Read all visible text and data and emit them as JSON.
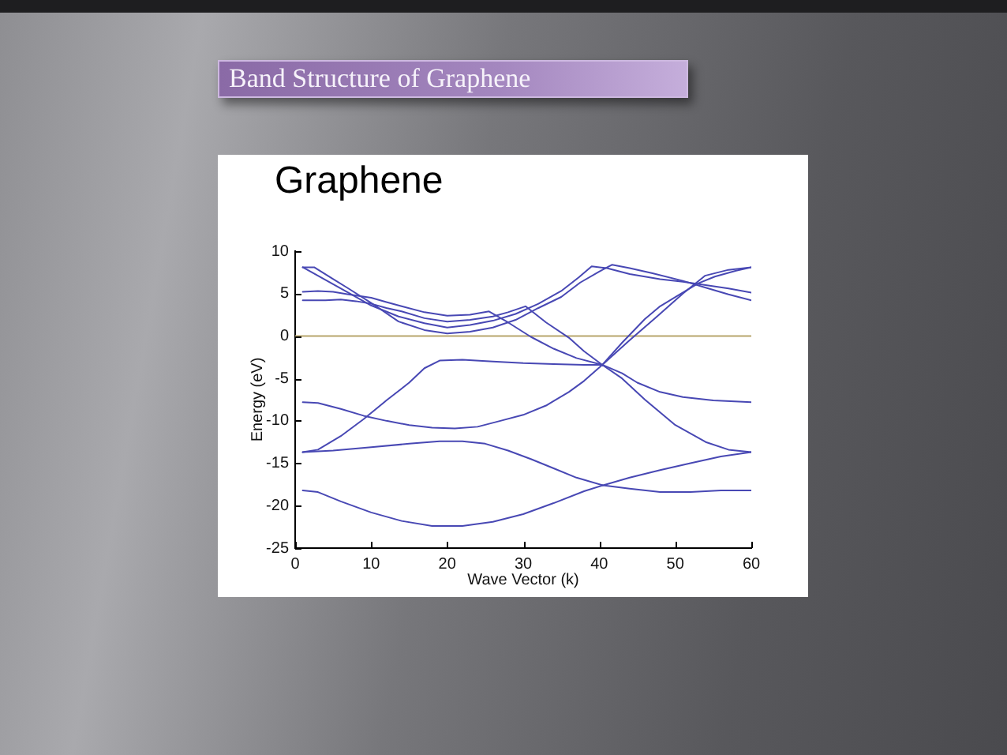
{
  "chart_data": {
    "type": "line",
    "title": "Band Structure of Graphene",
    "subtitle": "Graphene",
    "xlabel": "Wave Vector (k)",
    "ylabel": "Energy (eV)",
    "xlim": [
      0,
      60
    ],
    "xticks": [
      0,
      10,
      20,
      30,
      40,
      50,
      60
    ],
    "ylim": [
      -25,
      10
    ],
    "yticks": [
      -25,
      -20,
      -15,
      -10,
      -5,
      0,
      5,
      10
    ],
    "legend": false,
    "ref_lines": [
      {
        "axis": "y",
        "value": 0,
        "color": "#b8a66c"
      }
    ],
    "series": [
      {
        "color": "#4848b4",
        "x": [
          1,
          3,
          5,
          7,
          10,
          12,
          14,
          17,
          20,
          23,
          25.5,
          28,
          31,
          34,
          37,
          40.4,
          44,
          47.6,
          51,
          53.9,
          57,
          60
        ],
        "values": [
          5.2,
          5.3,
          5.2,
          4.9,
          4.5,
          4.0,
          3.5,
          2.8,
          2.4,
          2.5,
          2.9,
          1.6,
          -0.1,
          -1.5,
          -2.6,
          -3.4,
          -0.5,
          2.3,
          5.0,
          7.1,
          7.8,
          8.1
        ]
      },
      {
        "color": "#4848b4",
        "x": [
          1,
          4,
          6,
          8,
          10,
          12,
          14,
          17,
          20,
          23,
          26,
          28,
          30.3,
          33,
          36,
          38,
          40.4,
          43,
          46,
          48,
          50.4,
          53,
          55.2,
          58,
          60
        ],
        "values": [
          4.2,
          4.2,
          4.3,
          4.1,
          3.8,
          3.3,
          2.9,
          2.1,
          1.7,
          1.9,
          2.3,
          2.8,
          3.5,
          1.6,
          -0.2,
          -1.8,
          -3.4,
          -0.8,
          2.0,
          3.5,
          4.8,
          6.2,
          7.0,
          7.7,
          8.1
        ]
      },
      {
        "color": "#4848b4",
        "x": [
          1,
          3,
          5,
          7,
          10,
          13.6,
          17,
          20,
          23,
          26,
          29,
          32,
          35,
          37.3,
          39,
          41,
          44,
          48,
          51,
          54,
          57,
          60
        ],
        "values": [
          8.1,
          7.1,
          6.1,
          5.1,
          3.6,
          2.3,
          1.5,
          1.0,
          1.3,
          1.8,
          2.6,
          3.8,
          5.3,
          6.9,
          8.2,
          8.0,
          7.3,
          6.7,
          6.4,
          6.0,
          5.6,
          5.1
        ]
      },
      {
        "color": "#4848b4",
        "x": [
          1,
          2.5,
          5,
          7,
          10,
          13.6,
          17,
          20,
          23,
          26,
          29,
          32,
          35,
          37.5,
          40,
          41.7,
          44,
          47,
          51,
          54,
          57,
          60
        ],
        "values": [
          8.1,
          8.1,
          6.7,
          5.6,
          3.9,
          1.7,
          0.7,
          0.3,
          0.5,
          1.0,
          1.9,
          3.3,
          4.6,
          6.3,
          7.6,
          8.4,
          8.0,
          7.4,
          6.5,
          5.7,
          4.9,
          4.2
        ]
      },
      {
        "color": "#4848b4",
        "x": [
          1,
          3,
          6,
          10,
          14,
          18,
          22,
          26,
          30,
          34,
          38,
          40.5,
          44,
          48,
          52,
          56,
          60
        ],
        "values": [
          -18.2,
          -18.4,
          -19.5,
          -20.8,
          -21.8,
          -22.4,
          -22.4,
          -21.9,
          -21.0,
          -19.7,
          -18.3,
          -17.6,
          -16.7,
          -15.8,
          -15.0,
          -14.2,
          -13.7
        ]
      },
      {
        "color": "#4848b4",
        "x": [
          1,
          5,
          10,
          15,
          19,
          22,
          25,
          28,
          31,
          34,
          37,
          40.5,
          44,
          48,
          52,
          56,
          60
        ],
        "values": [
          -13.7,
          -13.5,
          -13.1,
          -12.7,
          -12.4,
          -12.4,
          -12.7,
          -13.5,
          -14.5,
          -15.6,
          -16.7,
          -17.6,
          -18.0,
          -18.4,
          -18.4,
          -18.2,
          -18.2
        ]
      },
      {
        "color": "#4848b4",
        "x": [
          1,
          3,
          6,
          9,
          12,
          15,
          17,
          19,
          22,
          26,
          30,
          34,
          38,
          40.4,
          43,
          45,
          48,
          51,
          55,
          60
        ],
        "values": [
          -13.7,
          -13.4,
          -11.8,
          -9.8,
          -7.6,
          -5.5,
          -3.8,
          -2.9,
          -2.8,
          -3.0,
          -3.2,
          -3.3,
          -3.4,
          -3.4,
          -4.4,
          -5.5,
          -6.6,
          -7.2,
          -7.6,
          -7.8
        ]
      },
      {
        "color": "#4848b4",
        "x": [
          1,
          3,
          6,
          9,
          12,
          15,
          18,
          21,
          24,
          27,
          30,
          33,
          36,
          38,
          40.4,
          43,
          46,
          50,
          54,
          57,
          60
        ],
        "values": [
          -7.8,
          -7.9,
          -8.6,
          -9.4,
          -10.0,
          -10.5,
          -10.8,
          -10.9,
          -10.7,
          -10.0,
          -9.3,
          -8.2,
          -6.6,
          -5.3,
          -3.4,
          -5.0,
          -7.5,
          -10.5,
          -12.5,
          -13.4,
          -13.7
        ]
      }
    ]
  }
}
